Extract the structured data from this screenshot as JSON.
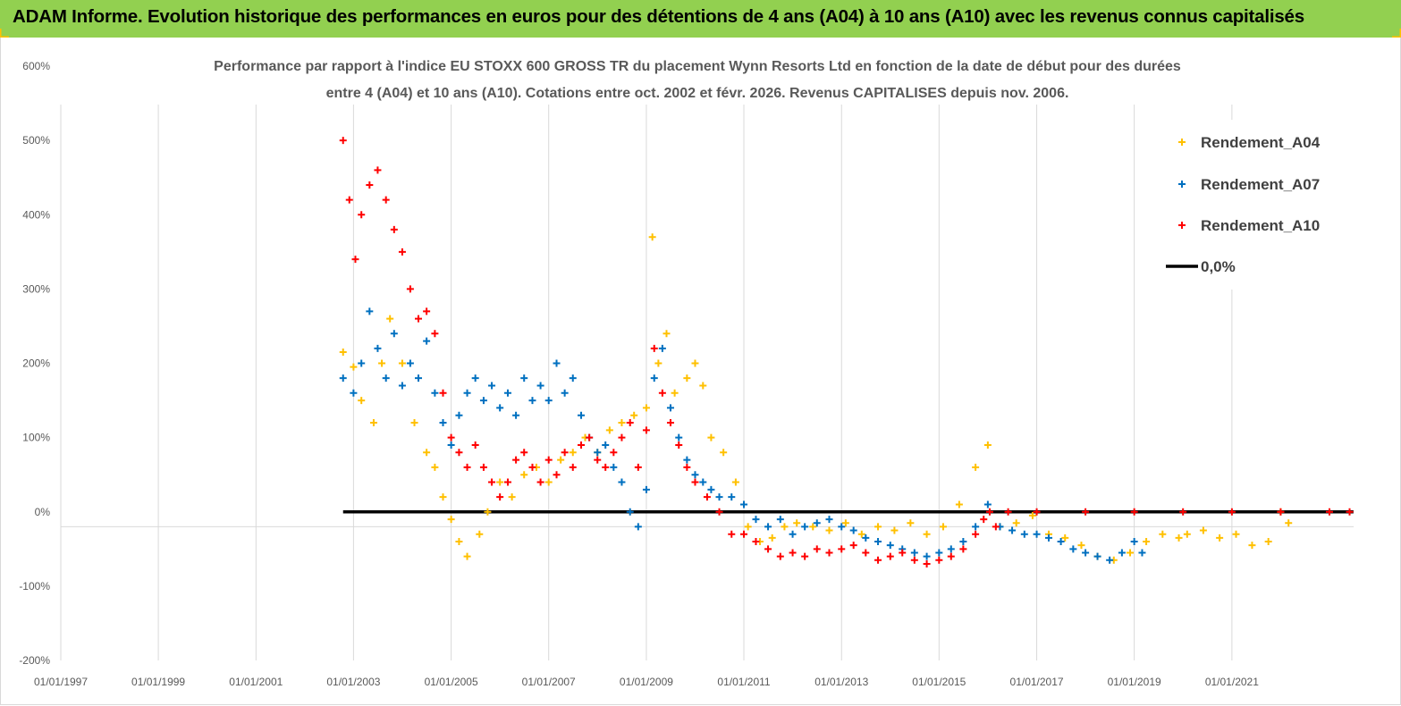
{
  "banner": {
    "title": "ADAM Informe. Evolution historique des performances en euros pour des détentions de 4 ans (A04) à 10 ans (A10) avec les revenus connus capitalisés"
  },
  "colors": {
    "banner": "#92d050",
    "A04": "#ffc000",
    "A07": "#0070c0",
    "A10": "#ff0000",
    "zero": "#000000"
  },
  "chart_data": {
    "type": "scatter",
    "title_line1": "Performance par rapport à l'indice EU STOXX 600 GROSS TR  du placement Wynn Resorts Ltd en fonction de la date de début pour des durées",
    "title_line2": "entre 4 (A04) et 10 ans (A10). Cotations entre oct. 2002 et févr. 2026. Revenus CAPITALISES depuis nov. 2006.",
    "xlabel": "",
    "ylabel": "",
    "xlim": [
      "1997-01-01",
      "2023-07-01"
    ],
    "ylim": [
      -200,
      600
    ],
    "x_ticks": [
      "01/01/1997",
      "01/01/1999",
      "01/01/2001",
      "01/01/2003",
      "01/01/2005",
      "01/01/2007",
      "01/01/2009",
      "01/01/2011",
      "01/01/2013",
      "01/01/2015",
      "01/01/2017",
      "01/01/2019",
      "01/01/2021"
    ],
    "y_ticks": [
      "600%",
      "500%",
      "400%",
      "300%",
      "200%",
      "100%",
      "0%",
      "-100%",
      "-200%"
    ],
    "grid": "vertical",
    "legend_position": "top-right",
    "legend": [
      "Rendement_A04",
      "Rendement_A07",
      "Rendement_A10",
      "0,0%"
    ],
    "series": [
      {
        "name": "Rendement_A04",
        "x": [
          "2002-10-15",
          "2003-01-01",
          "2003-03-01",
          "2003-06-01",
          "2003-08-01",
          "2003-10-01",
          "2004-01-01",
          "2004-04-01",
          "2004-07-01",
          "2004-09-01",
          "2004-11-01",
          "2005-01-01",
          "2005-03-01",
          "2005-05-01",
          "2005-08-01",
          "2005-10-01",
          "2006-01-01",
          "2006-04-01",
          "2006-07-01",
          "2006-10-01",
          "2007-01-01",
          "2007-04-01",
          "2007-07-01",
          "2007-10-01",
          "2008-01-01",
          "2008-04-01",
          "2008-07-01",
          "2008-10-01",
          "2009-01-01",
          "2009-02-15",
          "2009-04-01",
          "2009-06-01",
          "2009-08-01",
          "2009-11-01",
          "2010-01-01",
          "2010-03-01",
          "2010-05-01",
          "2010-08-01",
          "2010-11-01",
          "2011-02-01",
          "2011-05-01",
          "2011-08-01",
          "2011-11-01",
          "2012-02-01",
          "2012-06-01",
          "2012-10-01",
          "2013-02-01",
          "2013-06-01",
          "2013-10-01",
          "2014-02-01",
          "2014-06-01",
          "2014-10-01",
          "2015-02-01",
          "2015-06-01",
          "2015-10-01",
          "2016-01-01",
          "2016-04-01",
          "2016-08-01",
          "2016-12-01",
          "2017-04-01",
          "2017-08-01",
          "2017-12-01",
          "2018-04-01",
          "2018-08-01",
          "2018-12-01",
          "2019-04-01",
          "2019-08-01",
          "2019-12-01",
          "2020-02-01",
          "2020-06-01",
          "2020-10-01",
          "2021-02-01",
          "2021-06-01",
          "2021-10-01",
          "2022-01-01",
          "2022-03-01"
        ],
        "values": [
          215,
          195,
          150,
          120,
          200,
          260,
          200,
          120,
          80,
          60,
          20,
          -10,
          -40,
          -60,
          -30,
          0,
          40,
          20,
          50,
          60,
          40,
          70,
          80,
          100,
          80,
          110,
          120,
          130,
          140,
          370,
          200,
          240,
          160,
          180,
          200,
          170,
          100,
          80,
          40,
          -20,
          -40,
          -35,
          -20,
          -15,
          -20,
          -25,
          -15,
          -30,
          -20,
          -25,
          -15,
          -30,
          -20,
          10,
          60,
          90,
          -20,
          -15,
          -5,
          -30,
          -35,
          -45,
          -60,
          -65,
          -55,
          -40,
          -30,
          -35,
          -30,
          -25,
          -35,
          -30,
          -45,
          -40,
          0,
          -15
        ]
      },
      {
        "name": "Rendement_A07",
        "x": [
          "2002-10-15",
          "2003-01-01",
          "2003-03-01",
          "2003-05-01",
          "2003-07-01",
          "2003-09-01",
          "2003-11-01",
          "2004-01-01",
          "2004-03-01",
          "2004-05-01",
          "2004-07-01",
          "2004-09-01",
          "2004-11-01",
          "2005-01-01",
          "2005-03-01",
          "2005-05-01",
          "2005-07-01",
          "2005-09-01",
          "2005-11-01",
          "2006-01-01",
          "2006-03-01",
          "2006-05-01",
          "2006-07-01",
          "2006-09-01",
          "2006-11-01",
          "2007-01-01",
          "2007-03-01",
          "2007-05-01",
          "2007-07-01",
          "2007-09-01",
          "2007-11-01",
          "2008-01-01",
          "2008-03-01",
          "2008-05-01",
          "2008-07-01",
          "2008-09-01",
          "2008-11-01",
          "2009-01-01",
          "2009-03-01",
          "2009-05-01",
          "2009-07-01",
          "2009-09-01",
          "2009-11-01",
          "2010-01-01",
          "2010-03-01",
          "2010-05-01",
          "2010-07-01",
          "2010-10-01",
          "2011-01-01",
          "2011-04-01",
          "2011-07-01",
          "2011-10-01",
          "2012-01-01",
          "2012-04-01",
          "2012-07-01",
          "2012-10-01",
          "2013-01-01",
          "2013-04-01",
          "2013-07-01",
          "2013-10-01",
          "2014-01-01",
          "2014-04-01",
          "2014-07-01",
          "2014-10-01",
          "2015-01-01",
          "2015-04-01",
          "2015-07-01",
          "2015-10-01",
          "2016-01-01",
          "2016-04-01",
          "2016-07-01",
          "2016-10-01",
          "2017-01-01",
          "2017-04-01",
          "2017-07-01",
          "2017-10-01",
          "2018-01-01",
          "2018-04-01",
          "2018-07-01",
          "2018-10-01",
          "2019-01-01",
          "2019-03-01"
        ],
        "values": [
          180,
          160,
          200,
          270,
          220,
          180,
          240,
          170,
          200,
          180,
          230,
          160,
          120,
          90,
          130,
          160,
          180,
          150,
          170,
          140,
          160,
          130,
          180,
          150,
          170,
          150,
          200,
          160,
          180,
          130,
          100,
          80,
          90,
          60,
          40,
          0,
          -20,
          30,
          180,
          220,
          140,
          100,
          70,
          50,
          40,
          30,
          20,
          20,
          10,
          -10,
          -20,
          -10,
          -30,
          -20,
          -15,
          -10,
          -20,
          -25,
          -35,
          -40,
          -45,
          -50,
          -55,
          -60,
          -55,
          -50,
          -40,
          -20,
          10,
          -20,
          -25,
          -30,
          -30,
          -35,
          -40,
          -50,
          -55,
          -60,
          -65,
          -55,
          -40,
          -55
        ]
      },
      {
        "name": "Rendement_A10",
        "x": [
          "2002-10-15",
          "2002-12-01",
          "2003-01-15",
          "2003-03-01",
          "2003-05-01",
          "2003-07-01",
          "2003-09-01",
          "2003-11-01",
          "2004-01-01",
          "2004-03-01",
          "2004-05-01",
          "2004-07-01",
          "2004-09-01",
          "2004-11-01",
          "2005-01-01",
          "2005-03-01",
          "2005-05-01",
          "2005-07-01",
          "2005-09-01",
          "2005-11-01",
          "2006-01-01",
          "2006-03-01",
          "2006-05-01",
          "2006-07-01",
          "2006-09-01",
          "2006-11-01",
          "2007-01-01",
          "2007-03-01",
          "2007-05-01",
          "2007-07-01",
          "2007-09-01",
          "2007-11-01",
          "2008-01-01",
          "2008-03-01",
          "2008-05-01",
          "2008-07-01",
          "2008-09-01",
          "2008-11-01",
          "2009-01-01",
          "2009-03-01",
          "2009-05-01",
          "2009-07-01",
          "2009-09-01",
          "2009-11-01",
          "2010-01-01",
          "2010-04-01",
          "2010-07-01",
          "2010-10-01",
          "2011-01-01",
          "2011-04-01",
          "2011-07-01",
          "2011-10-01",
          "2012-01-01",
          "2012-04-01",
          "2012-07-01",
          "2012-10-01",
          "2013-01-01",
          "2013-04-01",
          "2013-07-01",
          "2013-10-01",
          "2014-01-01",
          "2014-04-01",
          "2014-07-01",
          "2014-10-01",
          "2015-01-01",
          "2015-04-01",
          "2015-07-01",
          "2015-10-01",
          "2015-12-01",
          "2016-01-15",
          "2016-03-01",
          "2016-06-01",
          "2017-01-01",
          "2018-01-01",
          "2019-01-01",
          "2020-01-01",
          "2021-01-01",
          "2022-01-01",
          "2023-01-01",
          "2023-06-01"
        ],
        "values": [
          500,
          420,
          340,
          400,
          440,
          460,
          420,
          380,
          350,
          300,
          260,
          270,
          240,
          160,
          100,
          80,
          60,
          90,
          60,
          40,
          20,
          40,
          70,
          80,
          60,
          40,
          70,
          50,
          80,
          60,
          90,
          100,
          70,
          60,
          80,
          100,
          120,
          60,
          110,
          220,
          160,
          120,
          90,
          60,
          40,
          20,
          0,
          -30,
          -30,
          -40,
          -50,
          -60,
          -55,
          -60,
          -50,
          -55,
          -50,
          -45,
          -55,
          -65,
          -60,
          -55,
          -65,
          -70,
          -65,
          -60,
          -50,
          -30,
          -10,
          0,
          -20,
          0,
          0,
          0,
          0,
          0,
          0,
          0,
          0,
          0
        ]
      },
      {
        "name": "0,0%",
        "x": [
          "2002-10-15",
          "2023-06-30"
        ],
        "values": [
          0,
          0
        ]
      }
    ]
  }
}
